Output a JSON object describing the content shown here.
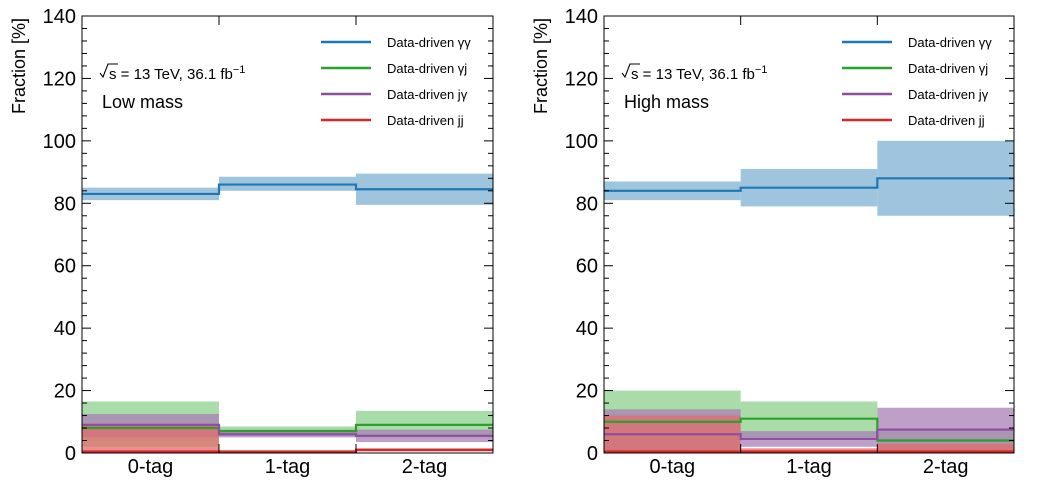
{
  "chart_data": [
    {
      "type": "step-band",
      "panel_label": "Low mass",
      "energy_label": {
        "sqrt": "s",
        "text": "= 13 TeV, 36.1 fb",
        "sup": "−1"
      },
      "ylabel": "Fraction [%]",
      "ylim": [
        0,
        140
      ],
      "yticks": [
        "0",
        "20",
        "40",
        "60",
        "80",
        "100",
        "120",
        "140"
      ],
      "categories": [
        "0-tag",
        "1-tag",
        "2-tag"
      ],
      "legend_position": "top-right",
      "series": [
        {
          "name": "Data-driven γγ",
          "color": "#1f77b4",
          "band_color": "#7fb0d3",
          "values": [
            83.0,
            86.0,
            84.5
          ],
          "low": [
            81.0,
            84.0,
            79.5
          ],
          "high": [
            85.0,
            88.5,
            89.5
          ]
        },
        {
          "name": "Data-driven γj",
          "color": "#2ca02c",
          "band_color": "#8ed08e",
          "values": [
            8.0,
            7.0,
            9.0
          ],
          "low": [
            2.0,
            5.5,
            5.0
          ],
          "high": [
            16.5,
            8.5,
            13.5
          ]
        },
        {
          "name": "Data-driven jγ",
          "color": "#8e4f9e",
          "band_color": "#a77fb5",
          "values": [
            9.0,
            6.0,
            5.5
          ],
          "low": [
            5.0,
            5.0,
            3.5
          ],
          "high": [
            12.5,
            7.5,
            7.5
          ]
        },
        {
          "name": "Data-driven jj",
          "color": "#d62728",
          "band_color": "#e36b6c",
          "values": [
            0.5,
            0.5,
            1.0
          ],
          "low": [
            0.0,
            0.0,
            0.5
          ],
          "high": [
            9.0,
            0.8,
            1.5
          ]
        }
      ]
    },
    {
      "type": "step-band",
      "panel_label": "High mass",
      "energy_label": {
        "sqrt": "s",
        "text": "= 13 TeV, 36.1 fb",
        "sup": "−1"
      },
      "ylabel": "Fraction [%]",
      "ylim": [
        0,
        140
      ],
      "yticks": [
        "0",
        "20",
        "40",
        "60",
        "80",
        "100",
        "120",
        "140"
      ],
      "categories": [
        "0-tag",
        "1-tag",
        "2-tag"
      ],
      "legend_position": "top-right",
      "series": [
        {
          "name": "Data-driven γγ",
          "color": "#1f77b4",
          "band_color": "#7fb0d3",
          "values": [
            84.0,
            85.0,
            88.0
          ],
          "low": [
            81.0,
            79.0,
            76.0
          ],
          "high": [
            87.0,
            91.0,
            100.0
          ]
        },
        {
          "name": "Data-driven γj",
          "color": "#2ca02c",
          "band_color": "#8ed08e",
          "values": [
            10.0,
            11.0,
            4.0
          ],
          "low": [
            0.0,
            5.0,
            0.0
          ],
          "high": [
            20.0,
            16.5,
            7.0
          ]
        },
        {
          "name": "Data-driven jγ",
          "color": "#8e4f9e",
          "band_color": "#a77fb5",
          "values": [
            6.0,
            4.5,
            7.5
          ],
          "low": [
            0.0,
            2.0,
            0.0
          ],
          "high": [
            14.0,
            7.0,
            14.5
          ]
        },
        {
          "name": "Data-driven jj",
          "color": "#d62728",
          "band_color": "#e36b6c",
          "values": [
            0.5,
            0.5,
            0.5
          ],
          "low": [
            0.0,
            0.0,
            0.0
          ],
          "high": [
            12.0,
            1.5,
            3.0
          ]
        }
      ]
    }
  ]
}
